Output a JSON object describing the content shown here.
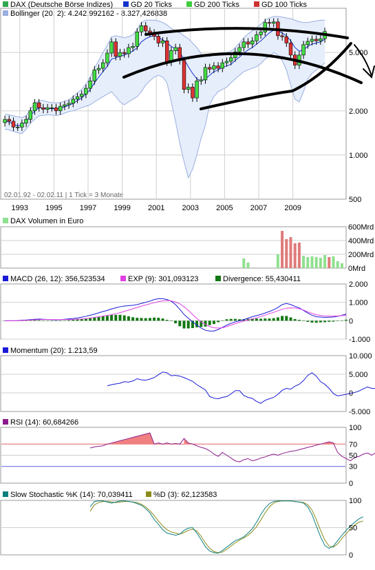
{
  "colors": {
    "dax": "#2fa84f",
    "gd20": "#1433cc",
    "gd200": "#3ecc3e",
    "gd100": "#cc3333",
    "bollinger": "#9aaee0",
    "bollinger_fill": "#e6eefb",
    "volume_up": "#8fe08f",
    "volume_down": "#e07a7a",
    "macd": "#1a1ad8",
    "exp": "#e040e0",
    "divergence": "#127812",
    "momentum": "#1a1ad8",
    "rsi": "#8c1a8c",
    "rsi_fill": "#f08080",
    "stoch_k": "#0c7f7f",
    "stoch_d": "#8b8b1a",
    "grid": "#cfcfcf",
    "drawing": "#000000"
  },
  "price": {
    "legend": [
      {
        "label": "DAX (Deutsche Börse Indizes)",
        "color": "#2fa84f"
      },
      {
        "label": "GD 20 Ticks",
        "color": "#1433cc"
      },
      {
        "label": "GD 200 Ticks",
        "color": "#3ecc3e"
      },
      {
        "label": "GD 100 Ticks",
        "color": "#cc3333"
      }
    ],
    "bollinger_label": "Bollinger (20, 2): 4.242,992162 - 8.327,426838",
    "y_ticks": [
      "5.000",
      "2.000",
      "1.000",
      "500"
    ],
    "x_ticks": [
      "1993",
      "1995",
      "1997",
      "1999",
      "2001",
      "2003",
      "2005",
      "2007",
      "2009"
    ],
    "info": "02.01.92 - 02.02.11 | 1 Tick = 3 Monate"
  },
  "volume": {
    "legend": "DAX Volumen in Euro",
    "y_ticks": [
      "600Mrd",
      "400Mrd",
      "200Mrd",
      "0Mrd"
    ]
  },
  "macd": {
    "legend": [
      {
        "label": "MACD (26, 12): 356,523534",
        "color": "#1a1ad8"
      },
      {
        "label": "EXP (9): 301,093123",
        "color": "#e040e0"
      },
      {
        "label": "Divergence: 55,430411",
        "color": "#127812"
      }
    ],
    "y_ticks": [
      "2.000",
      "1.000",
      "0",
      "-1.000"
    ]
  },
  "momentum": {
    "legend": "Momentum (20): 1.213,59",
    "y_ticks": [
      "10.000",
      "5.000",
      "0",
      "-5.000"
    ]
  },
  "rsi": {
    "legend": "RSI (14): 60,684266",
    "y_ticks": [
      "100",
      "70",
      "50",
      "30",
      "0"
    ]
  },
  "stochastic": {
    "legend": [
      {
        "label": "Slow Stochastic %K (14): 70,039411",
        "color": "#0c7f7f"
      },
      {
        "label": "%D (3): 62,123583",
        "color": "#8b8b1a"
      }
    ],
    "y_ticks": [
      "100",
      "50",
      "0"
    ]
  },
  "chart_data": [
    {
      "type": "candlestick",
      "panel": "price",
      "scale": "log",
      "ylim": [
        500,
        10000
      ],
      "x": [
        "1992Q1",
        "1992Q2",
        "1992Q3",
        "1992Q4",
        "1993Q1",
        "1993Q2",
        "1993Q3",
        "1993Q4",
        "1994Q1",
        "1994Q2",
        "1994Q3",
        "1994Q4",
        "1995Q1",
        "1995Q2",
        "1995Q3",
        "1995Q4",
        "1996Q1",
        "1996Q2",
        "1996Q3",
        "1996Q4",
        "1997Q1",
        "1997Q2",
        "1997Q3",
        "1997Q4",
        "1998Q1",
        "1998Q2",
        "1998Q3",
        "1998Q4",
        "1999Q1",
        "1999Q2",
        "1999Q3",
        "1999Q4",
        "2000Q1",
        "2000Q2",
        "2000Q3",
        "2000Q4",
        "2001Q1",
        "2001Q2",
        "2001Q3",
        "2001Q4",
        "2002Q1",
        "2002Q2",
        "2002Q3",
        "2002Q4",
        "2003Q1",
        "2003Q2",
        "2003Q3",
        "2003Q4",
        "2004Q1",
        "2004Q2",
        "2004Q3",
        "2004Q4",
        "2005Q1",
        "2005Q2",
        "2005Q3",
        "2005Q4",
        "2006Q1",
        "2006Q2",
        "2006Q3",
        "2006Q4",
        "2007Q1",
        "2007Q2",
        "2007Q3",
        "2007Q4",
        "2008Q1",
        "2008Q2",
        "2008Q3",
        "2008Q4",
        "2009Q1",
        "2009Q2",
        "2009Q3",
        "2009Q4",
        "2010Q1",
        "2010Q2",
        "2010Q3",
        "2010Q4"
      ],
      "close": [
        1750,
        1700,
        1550,
        1550,
        1650,
        1750,
        2000,
        2270,
        2100,
        2050,
        2100,
        2100,
        2000,
        2150,
        2200,
        2250,
        2400,
        2500,
        2600,
        2850,
        3200,
        3800,
        3900,
        4250,
        4950,
        5900,
        4700,
        5000,
        4900,
        5400,
        5500,
        6900,
        7600,
        7000,
        6800,
        6450,
        5800,
        6000,
        4300,
        5150,
        5400,
        4400,
        2800,
        2900,
        2450,
        3200,
        3250,
        3950,
        3850,
        4050,
        3900,
        4250,
        4350,
        4600,
        5050,
        5400,
        5900,
        5700,
        6000,
        6600,
        6900,
        8000,
        7900,
        8070,
        6500,
        6400,
        5800,
        4800,
        4100,
        4800,
        5650,
        5950,
        6150,
        6000,
        6200,
        6950
      ],
      "mid": [
        1700,
        1680,
        1620,
        1580,
        1600,
        1700,
        1850,
        2000,
        2100,
        2090,
        2080,
        2070,
        2060,
        2080,
        2130,
        2180,
        2250,
        2350,
        2450,
        2600,
        2800,
        3100,
        3400,
        3700,
        4000,
        4500,
        4600,
        4700,
        4800,
        4950,
        5100,
        5400,
        5900,
        6200,
        6400,
        6500,
        6300,
        6100,
        5800,
        5500,
        5300,
        5000,
        4500,
        4000,
        3600,
        3300,
        3200,
        3300,
        3500,
        3700,
        3800,
        3950,
        4050,
        4150,
        4400,
        4650,
        4950,
        5200,
        5400,
        5700,
        6000,
        6400,
        6800,
        7100,
        7000,
        6800,
        6500,
        6000,
        5400,
        5100,
        5200,
        5500,
        5700,
        5800,
        5900,
        6150
      ],
      "boll_upper": [
        1900,
        1880,
        1850,
        1820,
        1800,
        1850,
        2050,
        2250,
        2350,
        2350,
        2300,
        2280,
        2260,
        2280,
        2330,
        2380,
        2500,
        2650,
        2800,
        3050,
        3400,
        3900,
        4400,
        5000,
        5600,
        6400,
        6500,
        6400,
        6300,
        6400,
        6600,
        7200,
        8000,
        8300,
        8300,
        8300,
        8200,
        8000,
        7700,
        7300,
        7000,
        6800,
        6500,
        6200,
        5800,
        5400,
        4900,
        4700,
        4700,
        4800,
        4900,
        5000,
        5000,
        5100,
        5400,
        5800,
        6300,
        6700,
        7000,
        7400,
        7800,
        8300,
        8600,
        8800,
        8800,
        8700,
        8600,
        8500,
        8300,
        8100,
        8000,
        8000,
        8100,
        8200,
        8300,
        8300
      ],
      "boll_lower": [
        1500,
        1480,
        1450,
        1420,
        1400,
        1500,
        1650,
        1750,
        1850,
        1860,
        1880,
        1870,
        1860,
        1880,
        1930,
        1980,
        2000,
        2050,
        2100,
        2150,
        2200,
        2300,
        2400,
        2500,
        2600,
        2700,
        2500,
        2300,
        2200,
        2300,
        2400,
        2500,
        2700,
        3000,
        3200,
        3400,
        3500,
        3400,
        3100,
        2300,
        1700,
        1200,
        900,
        700,
        800,
        1000,
        1300,
        1600,
        2200,
        2500,
        2700,
        2800,
        2900,
        3100,
        3300,
        3500,
        3700,
        3800,
        3900,
        4000,
        4200,
        4500,
        4700,
        5000,
        4800,
        4400,
        3800,
        3000,
        2400,
        2300,
        2700,
        3300,
        3600,
        3800,
        4000,
        4250
      ]
    },
    {
      "type": "bar",
      "panel": "volume",
      "unit": "Mrd",
      "ylim": [
        0,
        600
      ],
      "x_index": [
        56,
        57,
        64,
        65,
        66,
        67,
        68,
        69,
        70,
        71,
        72,
        73,
        74,
        75,
        76,
        77,
        78,
        79
      ],
      "values": [
        140,
        80,
        200,
        540,
        420,
        450,
        360,
        370,
        180,
        160,
        170,
        160,
        150,
        190,
        160,
        170,
        100,
        70
      ],
      "direction": [
        "up",
        "up",
        "up",
        "down",
        "down",
        "down",
        "down",
        "down",
        "up",
        "up",
        "up",
        "up",
        "up",
        "up",
        "down",
        "up",
        "up",
        "up"
      ]
    },
    {
      "type": "line",
      "panel": "macd",
      "ylim": [
        -1000,
        2000
      ],
      "series": [
        {
          "name": "MACD",
          "values": [
            0,
            0,
            0,
            10,
            30,
            40,
            60,
            80,
            90,
            80,
            70,
            60,
            50,
            60,
            80,
            100,
            120,
            150,
            190,
            240,
            300,
            360,
            430,
            500,
            560,
            640,
            700,
            760,
            800,
            820,
            840,
            880,
            940,
            1000,
            1070,
            1150,
            1200,
            1200,
            1150,
            1060,
            880,
            620,
            340,
            140,
            -60,
            -240,
            -400,
            -520,
            -560,
            -560,
            -480,
            -360,
            -240,
            -140,
            -60,
            0,
            60,
            140,
            220,
            280,
            340,
            420,
            500,
            600,
            720,
            880,
            940,
            880,
            780,
            700,
            560,
            420,
            300,
            220,
            200,
            180,
            190,
            200,
            240,
            300,
            356
          ]
        },
        {
          "name": "EXP",
          "values": [
            0,
            0,
            0,
            5,
            15,
            25,
            35,
            50,
            60,
            65,
            66,
            65,
            62,
            60,
            62,
            66,
            72,
            82,
            96,
            116,
            142,
            180,
            216,
            254,
            292,
            328,
            380,
            440,
            510,
            580,
            650,
            720,
            790,
            860,
            920,
            980,
            1040,
            1080,
            1100,
            1080,
            1020,
            920,
            760,
            560,
            340,
            120,
            -60,
            -200,
            -320,
            -380,
            -400,
            -380,
            -320,
            -240,
            -160,
            -80,
            -20,
            40,
            100,
            160,
            230,
            300,
            380,
            460,
            540,
            620,
            680,
            700,
            690,
            650,
            580,
            480,
            400,
            330,
            290,
            260,
            250,
            250,
            260,
            280,
            301
          ]
        },
        {
          "name": "Divergence",
          "values": [
            0,
            0,
            0,
            5,
            15,
            15,
            25,
            30,
            30,
            15,
            4,
            -5,
            -12,
            0,
            18,
            34,
            48,
            68,
            94,
            124,
            158,
            180,
            214,
            246,
            268,
            312,
            320,
            320,
            290,
            240,
            190,
            160,
            150,
            140,
            150,
            170,
            160,
            120,
            50,
            -20,
            -140,
            -300,
            -420,
            -420,
            -400,
            -360,
            -340,
            -320,
            -240,
            -180,
            -80,
            20,
            80,
            100,
            100,
            80,
            80,
            100,
            120,
            120,
            110,
            120,
            120,
            140,
            180,
            260,
            260,
            180,
            90,
            50,
            -20,
            -60,
            -100,
            -110,
            -90,
            -80,
            -60,
            -50,
            -20,
            20,
            55
          ]
        }
      ]
    },
    {
      "type": "line",
      "panel": "momentum",
      "ylim": [
        -5000,
        10000
      ],
      "start_index": 24,
      "series": [
        {
          "name": "Momentum",
          "values": [
            1900,
            2200,
            2400,
            2600,
            3000,
            2900,
            3200,
            3800,
            3500,
            3400,
            3700,
            4100,
            4900,
            5600,
            5400,
            4600,
            4700,
            4500,
            4100,
            3600,
            3100,
            2200,
            1500,
            800,
            -1000,
            -1400,
            -1600,
            -1200,
            -1000,
            -300,
            600,
            600,
            -700,
            -1200,
            -1500,
            -2300,
            -2800,
            -2000,
            -1600,
            -1200,
            -400,
            700,
            1200,
            1000,
            1800,
            2300,
            3300,
            4700,
            5400,
            4500,
            3000,
            2300,
            1200,
            -200,
            -800,
            -600,
            -400,
            -100,
            100,
            500,
            1100,
            1600,
            1200,
            1213.59
          ]
        }
      ]
    },
    {
      "type": "line",
      "panel": "rsi",
      "ylim": [
        0,
        100
      ],
      "start_index": 20,
      "reference_lines": [
        70,
        30
      ],
      "series": [
        {
          "name": "RSI",
          "values": [
            63,
            65,
            66,
            67,
            70,
            72,
            74,
            76,
            78,
            80,
            82,
            84,
            86,
            88,
            90,
            70,
            72,
            70,
            72,
            70,
            71,
            70,
            80,
            72,
            70,
            67,
            64,
            62,
            58,
            52,
            48,
            55,
            50,
            45,
            40,
            38,
            42,
            44,
            40,
            42,
            45,
            47,
            50,
            52,
            50,
            53,
            55,
            57,
            58,
            60,
            62,
            64,
            66,
            68,
            70,
            72,
            74,
            72,
            55,
            48,
            44,
            40,
            46,
            48,
            52,
            54,
            50,
            55,
            58,
            60.68
          ]
        }
      ]
    },
    {
      "type": "line",
      "panel": "stochastic",
      "ylim": [
        0,
        100
      ],
      "start_index": 20,
      "series": [
        {
          "name": "%K",
          "values": [
            88,
            98,
            99,
            99,
            97,
            95,
            97,
            99,
            99,
            98,
            97,
            94,
            91,
            85,
            77,
            65,
            56,
            46,
            40,
            38,
            36,
            38,
            45,
            49,
            50,
            40,
            28,
            15,
            7,
            4,
            3,
            8,
            14,
            20,
            26,
            29,
            33,
            40,
            48,
            60,
            74,
            86,
            94,
            98,
            99,
            99,
            99,
            99,
            98,
            97,
            95,
            88,
            74,
            53,
            33,
            17,
            12,
            16,
            26,
            36,
            45,
            53,
            60,
            66,
            70.04
          ]
        },
        {
          "name": "%D",
          "values": [
            80,
            92,
            96,
            98,
            98,
            97,
            96,
            97,
            98,
            98,
            97,
            96,
            93,
            88,
            81,
            72,
            62,
            53,
            46,
            42,
            40,
            38,
            41,
            45,
            47,
            44,
            34,
            22,
            12,
            6,
            4,
            5,
            10,
            16,
            22,
            27,
            31,
            36,
            43,
            52,
            64,
            77,
            88,
            95,
            98,
            99,
            99,
            99,
            98,
            97,
            96,
            92,
            82,
            65,
            45,
            27,
            16,
            14,
            20,
            30,
            39,
            47,
            55,
            60,
            62.12
          ]
        }
      ]
    }
  ]
}
